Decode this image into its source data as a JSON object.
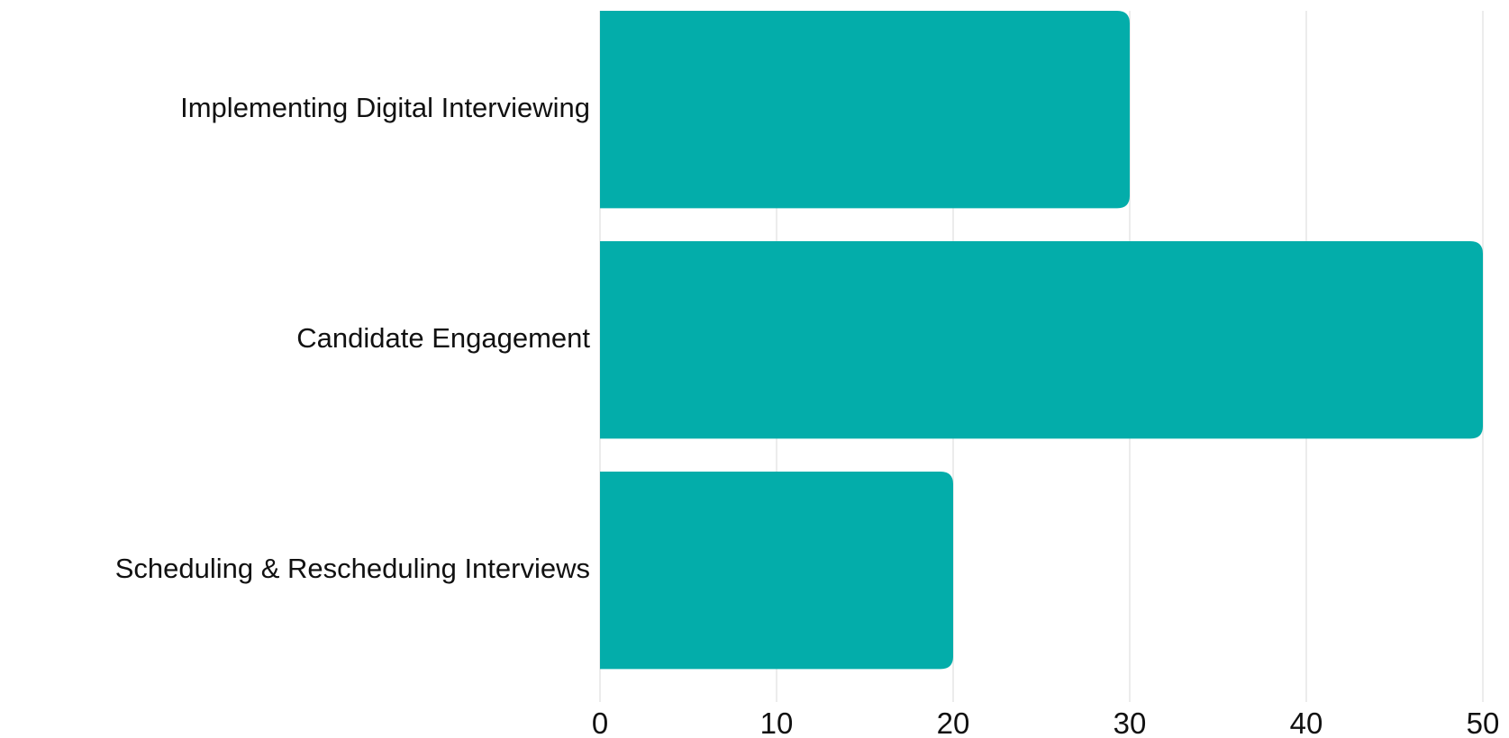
{
  "chart_data": {
    "type": "bar",
    "orientation": "horizontal",
    "categories": [
      "Implementing Digital Interviewing",
      "Candidate Engagement",
      "Scheduling & Rescheduling Interviews"
    ],
    "values": [
      30,
      50,
      20
    ],
    "title": "",
    "xlabel": "",
    "ylabel": "",
    "xlim": [
      0,
      50
    ],
    "x_ticks": [
      0,
      10,
      20,
      30,
      40,
      50
    ],
    "grid": "vertical",
    "legend": "none",
    "colors": {
      "bar": "#03ADAA",
      "grid": "#D9D9D9",
      "text": "#111111"
    }
  }
}
